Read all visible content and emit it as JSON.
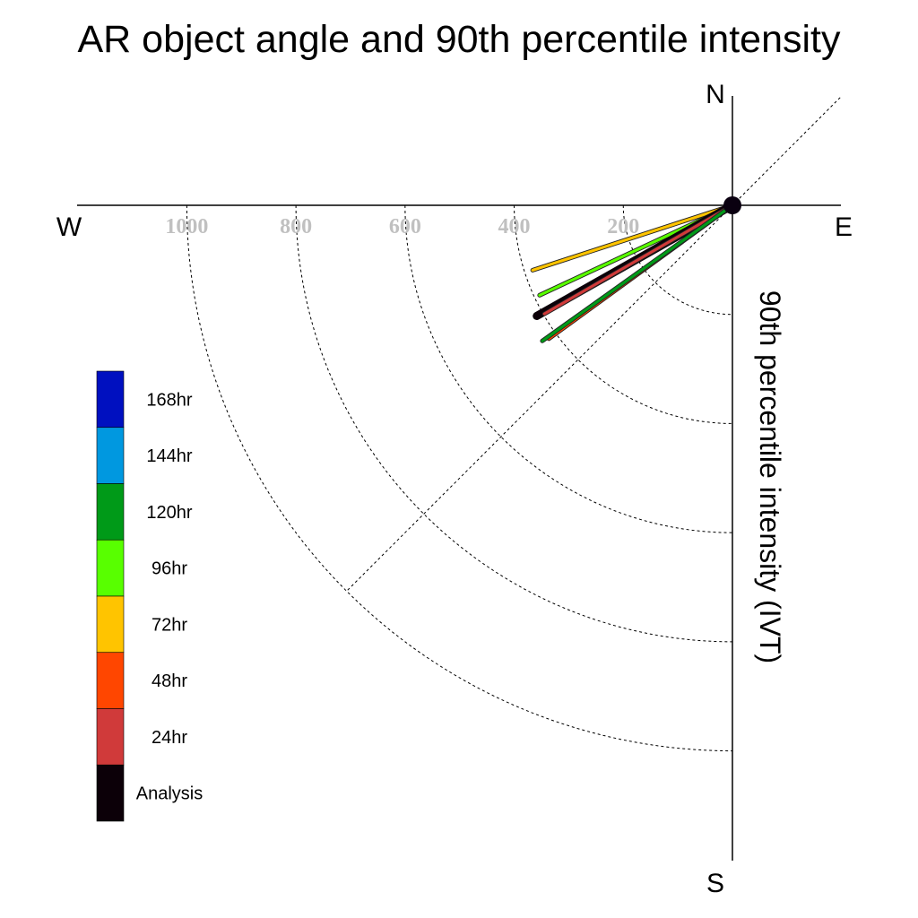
{
  "chart_data": {
    "type": "polar-vector",
    "title": "AR object angle and 90th percentile intensity",
    "ylabel": "90th percentile intensity (IVT)",
    "compass": {
      "north": "N",
      "south": "S",
      "east": "E",
      "west": "W"
    },
    "radial_ticks": [
      200,
      400,
      600,
      800,
      1000
    ],
    "radial_tick_labels": [
      "200",
      "400",
      "600",
      "800",
      "1000"
    ],
    "rlim": [
      0,
      1200
    ],
    "grid": true,
    "legend": {
      "placement": "lower-left",
      "entries": [
        {
          "label": "168hr",
          "color": "#0010c0"
        },
        {
          "label": "144hr",
          "color": "#0098e0"
        },
        {
          "label": "120hr",
          "color": "#009a18"
        },
        {
          "label": "96hr",
          "color": "#58ff00"
        },
        {
          "label": "72hr",
          "color": "#ffc400"
        },
        {
          "label": "48hr",
          "color": "#ff4600"
        },
        {
          "label": "24hr",
          "color": "#d03a3a"
        },
        {
          "label": "Analysis",
          "color": "#0c0008"
        }
      ]
    },
    "series": [
      {
        "name": "72hr",
        "color": "#ffc400",
        "angle_deg": 252,
        "intensity": 385
      },
      {
        "name": "96hr",
        "color": "#58ff00",
        "angle_deg": 245,
        "intensity": 390
      },
      {
        "name": "Analysis",
        "color": "#0c0008",
        "angle_deg": 240.5,
        "intensity": 412
      },
      {
        "name": "24hr",
        "color": "#d03a3a",
        "angle_deg": 240,
        "intensity": 398
      },
      {
        "name": "48hr",
        "color": "#ff4600",
        "angle_deg": 234,
        "intensity": 416
      },
      {
        "name": "120hr",
        "color": "#009a18",
        "angle_deg": 234.5,
        "intensity": 428
      }
    ]
  }
}
